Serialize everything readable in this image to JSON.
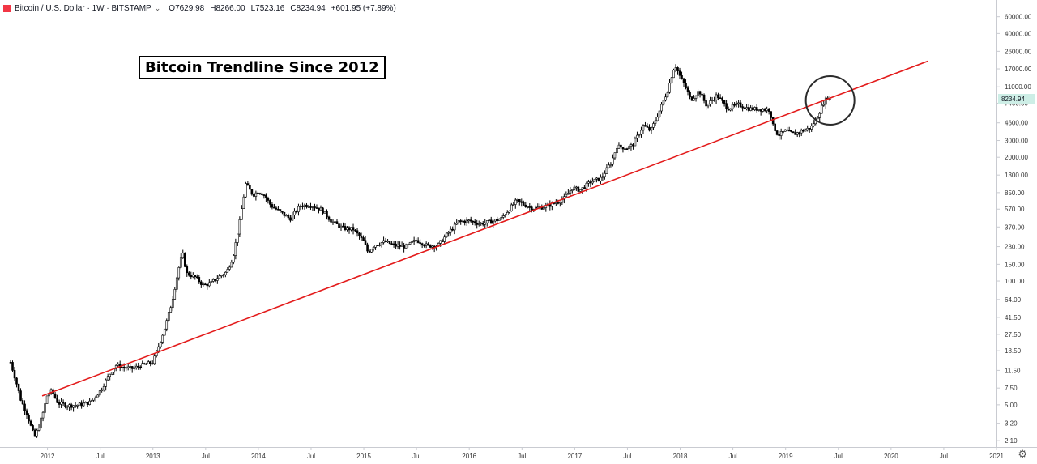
{
  "header": {
    "symbol": "Bitcoin / U.S. Dollar · 1W · BITSTAMP",
    "open_label": "O",
    "open": "7629.98",
    "high_label": "H",
    "high": "8266.00",
    "low_label": "L",
    "low": "7523.16",
    "close_label": "C",
    "close": "8234.94",
    "change": "+601.95 (+7.89%)"
  },
  "annotation_title": "Bitcoin Trendline Since 2012",
  "colors": {
    "candles": "#000000",
    "trendline": "#e31b1b",
    "price_tag": "#cdeee6",
    "circle": "#2b2b2b"
  },
  "chart_data": {
    "type": "line",
    "title": "Bitcoin Trendline Since 2012",
    "y_scale": "log",
    "ylim": [
      1.8,
      90000
    ],
    "y_ticks": [
      {
        "v": 60000,
        "label": "60000.00"
      },
      {
        "v": 40000,
        "label": "40000.00"
      },
      {
        "v": 26000,
        "label": "26000.00"
      },
      {
        "v": 17000,
        "label": "17000.00"
      },
      {
        "v": 11000,
        "label": "11000.00"
      },
      {
        "v": 7400,
        "label": "7400.00"
      },
      {
        "v": 4600,
        "label": "4600.00"
      },
      {
        "v": 3000,
        "label": "3000.00"
      },
      {
        "v": 2000,
        "label": "2000.00"
      },
      {
        "v": 1300,
        "label": "1300.00"
      },
      {
        "v": 850,
        "label": "850.00"
      },
      {
        "v": 570,
        "label": "570.00"
      },
      {
        "v": 370,
        "label": "370.00"
      },
      {
        "v": 230,
        "label": "230.00"
      },
      {
        "v": 150,
        "label": "150.00"
      },
      {
        "v": 100,
        "label": "100.00"
      },
      {
        "v": 64,
        "label": "64.00"
      },
      {
        "v": 41.5,
        "label": "41.50"
      },
      {
        "v": 27.5,
        "label": "27.50"
      },
      {
        "v": 18.5,
        "label": "18.50"
      },
      {
        "v": 11.5,
        "label": "11.50"
      },
      {
        "v": 7.5,
        "label": "7.50"
      },
      {
        "v": 5,
        "label": "5.00"
      },
      {
        "v": 3.2,
        "label": "3.20"
      },
      {
        "v": 2.1,
        "label": "2.10"
      }
    ],
    "xlim": [
      2011.55,
      2021.0
    ],
    "x_ticks": [
      {
        "t": 2012.0,
        "label": "2012"
      },
      {
        "t": 2012.5,
        "label": "Jul"
      },
      {
        "t": 2013.0,
        "label": "2013"
      },
      {
        "t": 2013.5,
        "label": "Jul"
      },
      {
        "t": 2014.0,
        "label": "2014"
      },
      {
        "t": 2014.5,
        "label": "Jul"
      },
      {
        "t": 2015.0,
        "label": "2015"
      },
      {
        "t": 2015.5,
        "label": "Jul"
      },
      {
        "t": 2016.0,
        "label": "2016"
      },
      {
        "t": 2016.5,
        "label": "Jul"
      },
      {
        "t": 2017.0,
        "label": "2017"
      },
      {
        "t": 2017.5,
        "label": "Jul"
      },
      {
        "t": 2018.0,
        "label": "2018"
      },
      {
        "t": 2018.5,
        "label": "Jul"
      },
      {
        "t": 2019.0,
        "label": "2019"
      },
      {
        "t": 2019.5,
        "label": "Jul"
      },
      {
        "t": 2020.0,
        "label": "2020"
      },
      {
        "t": 2020.5,
        "label": "Jul"
      },
      {
        "t": 2021.0,
        "label": "2021"
      }
    ],
    "last_price_label": "8234.94",
    "last_price": 8234.94,
    "price_series": [
      [
        2011.65,
        14
      ],
      [
        2011.7,
        9
      ],
      [
        2011.75,
        5.5
      ],
      [
        2011.8,
        4.2
      ],
      [
        2011.85,
        2.8
      ],
      [
        2011.88,
        2.3
      ],
      [
        2011.92,
        3.0
      ],
      [
        2011.96,
        4.2
      ],
      [
        2012.0,
        6.5
      ],
      [
        2012.04,
        7.0
      ],
      [
        2012.1,
        5.2
      ],
      [
        2012.2,
        4.9
      ],
      [
        2012.3,
        5.0
      ],
      [
        2012.4,
        5.3
      ],
      [
        2012.5,
        7.0
      ],
      [
        2012.6,
        11.0
      ],
      [
        2012.65,
        13.0
      ],
      [
        2012.7,
        12.5
      ],
      [
        2012.8,
        12.0
      ],
      [
        2012.9,
        13.0
      ],
      [
        2013.0,
        14.0
      ],
      [
        2013.05,
        20.0
      ],
      [
        2013.12,
        34.0
      ],
      [
        2013.18,
        60.0
      ],
      [
        2013.24,
        130.0
      ],
      [
        2013.28,
        200.0
      ],
      [
        2013.32,
        120.0
      ],
      [
        2013.4,
        110.0
      ],
      [
        2013.48,
        90.0
      ],
      [
        2013.55,
        95.0
      ],
      [
        2013.62,
        110.0
      ],
      [
        2013.7,
        125.0
      ],
      [
        2013.76,
        180.0
      ],
      [
        2013.82,
        400.0
      ],
      [
        2013.88,
        1050.0
      ],
      [
        2013.95,
        800.0
      ],
      [
        2014.0,
        880.0
      ],
      [
        2014.05,
        820.0
      ],
      [
        2014.12,
        620.0
      ],
      [
        2014.2,
        540.0
      ],
      [
        2014.3,
        450.0
      ],
      [
        2014.4,
        620.0
      ],
      [
        2014.5,
        630.0
      ],
      [
        2014.6,
        560.0
      ],
      [
        2014.7,
        420.0
      ],
      [
        2014.8,
        360.0
      ],
      [
        2014.9,
        350.0
      ],
      [
        2015.0,
        260.0
      ],
      [
        2015.04,
        200.0
      ],
      [
        2015.1,
        240.0
      ],
      [
        2015.2,
        260.0
      ],
      [
        2015.3,
        235.0
      ],
      [
        2015.4,
        230.0
      ],
      [
        2015.5,
        270.0
      ],
      [
        2015.6,
        235.0
      ],
      [
        2015.7,
        235.0
      ],
      [
        2015.8,
        320.0
      ],
      [
        2015.9,
        420.0
      ],
      [
        2016.0,
        430.0
      ],
      [
        2016.1,
        400.0
      ],
      [
        2016.2,
        420.0
      ],
      [
        2016.3,
        450.0
      ],
      [
        2016.45,
        700.0
      ],
      [
        2016.5,
        650.0
      ],
      [
        2016.6,
        580.0
      ],
      [
        2016.7,
        600.0
      ],
      [
        2016.8,
        650.0
      ],
      [
        2016.9,
        740.0
      ],
      [
        2016.98,
        960.0
      ],
      [
        2017.05,
        900.0
      ],
      [
        2017.15,
        1100.0
      ],
      [
        2017.25,
        1200.0
      ],
      [
        2017.35,
        1800.0
      ],
      [
        2017.4,
        2600.0
      ],
      [
        2017.5,
        2500.0
      ],
      [
        2017.55,
        2700.0
      ],
      [
        2017.65,
        4300.0
      ],
      [
        2017.72,
        3800.0
      ],
      [
        2017.8,
        6000.0
      ],
      [
        2017.88,
        10000.0
      ],
      [
        2017.95,
        19000.0
      ],
      [
        2018.0,
        14000.0
      ],
      [
        2018.05,
        11000.0
      ],
      [
        2018.1,
        8000.0
      ],
      [
        2018.18,
        10000.0
      ],
      [
        2018.25,
        7000.0
      ],
      [
        2018.35,
        9000.0
      ],
      [
        2018.45,
        6500.0
      ],
      [
        2018.55,
        7200.0
      ],
      [
        2018.65,
        6500.0
      ],
      [
        2018.75,
        6400.0
      ],
      [
        2018.85,
        6300.0
      ],
      [
        2018.88,
        4300.0
      ],
      [
        2018.93,
        3400.0
      ],
      [
        2019.0,
        3800.0
      ],
      [
        2019.08,
        3500.0
      ],
      [
        2019.16,
        3800.0
      ],
      [
        2019.24,
        4100.0
      ],
      [
        2019.3,
        5300.0
      ],
      [
        2019.36,
        7500.0
      ],
      [
        2019.4,
        8600.0
      ],
      [
        2019.43,
        8234.94
      ]
    ],
    "trendline": [
      [
        2011.95,
        6.2
      ],
      [
        2020.35,
        20500
      ]
    ]
  }
}
